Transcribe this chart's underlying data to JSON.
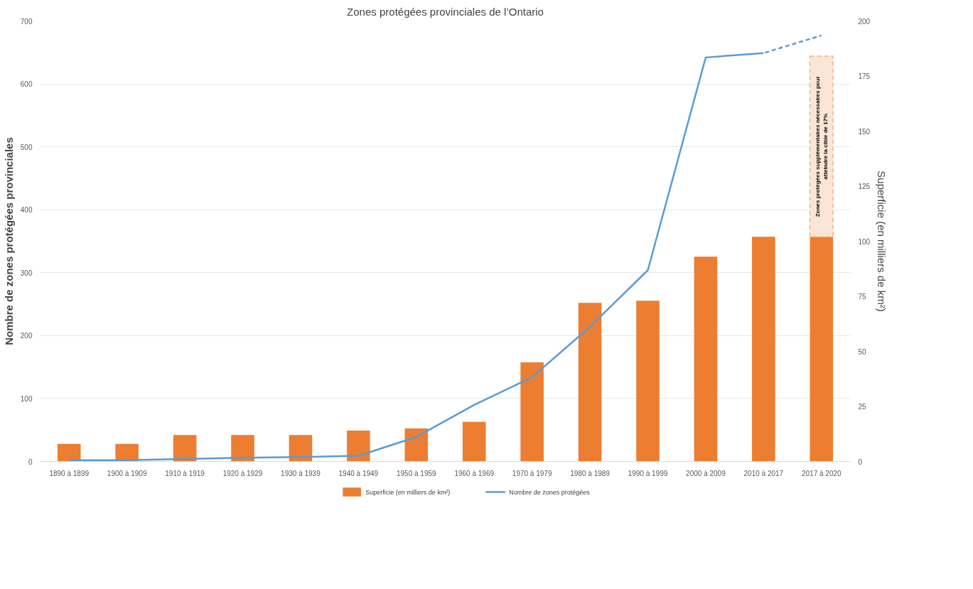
{
  "chart_data": {
    "type": "bar",
    "title": "Zones protégées provinciales de l’Ontario",
    "ylabel": "Nombre de zones protégées provinciales",
    "y2label": "Superficie (en milliers de km²)",
    "categories": [
      "1890 à 1899",
      "1900 à 1909",
      "1910 à 1919",
      "1920 à 1929",
      "1930 à 1939",
      "1940 à 1949",
      "1950 à 1959",
      "1960 à 1969",
      "1970 à 1979",
      "1980 à 1989",
      "1990 à 1999",
      "2000 à 2009",
      "2010 à 2017",
      "2017 à 2020"
    ],
    "stacked": true,
    "series": [
      {
        "name": "Superficie (en milliers de km²)",
        "axis": "y2",
        "color": "#ed7d31",
        "values": [
          8,
          8,
          12,
          12,
          12,
          14,
          15,
          18,
          45,
          72,
          73,
          93,
          102,
          102
        ]
      },
      {
        "axis": "y2",
        "color": "#fbe5d6",
        "line_style": "dashed",
        "values": [
          null,
          null,
          null,
          null,
          null,
          null,
          null,
          null,
          null,
          null,
          null,
          null,
          null,
          82
        ]
      },
      {
        "name": "Nombre de zones protégées",
        "type": "line",
        "color": "#5b9bd5",
        "line_style": "solid",
        "values": [
          2,
          2,
          4,
          6,
          7,
          9,
          39,
          90,
          134,
          214,
          304,
          642,
          649,
          null
        ]
      },
      {
        "type": "line",
        "color": "#5b9bd5",
        "line_style": "dashed",
        "values": [
          null,
          null,
          null,
          null,
          null,
          null,
          null,
          null,
          null,
          null,
          null,
          null,
          649,
          677
        ]
      }
    ],
    "ylim": [
      0,
      700
    ],
    "yticks": [
      0,
      100,
      200,
      300,
      400,
      500,
      600,
      700
    ],
    "y2lim": [
      0,
      200
    ],
    "y2ticks": [
      0,
      25,
      50,
      75,
      100,
      125,
      150,
      175,
      200
    ],
    "annotations": [
      "Zones protégées supplémentaires nécessaires pour atteindre la cible de 17%"
    ],
    "grid": "y",
    "legend": "bottom"
  }
}
